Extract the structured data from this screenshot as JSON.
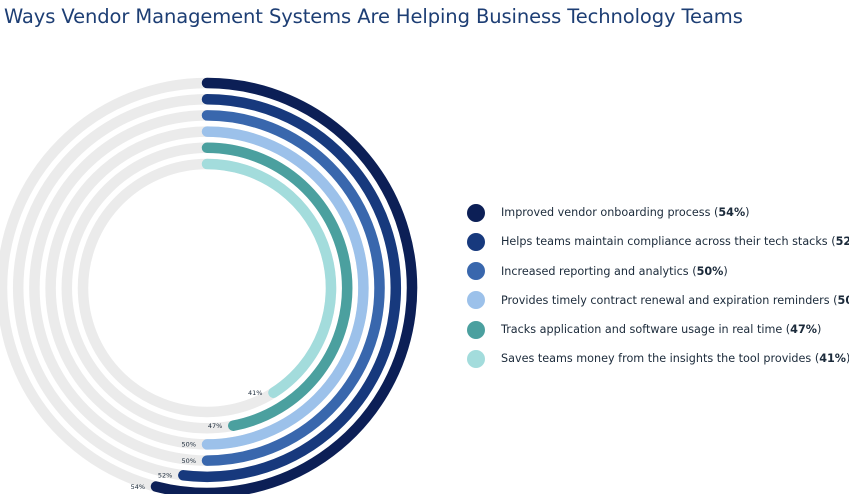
{
  "chart_data": {
    "type": "radial-bar",
    "title": "Ways Vendor Management Systems Are Helping Business Technology Teams",
    "max": 100,
    "track_color": "#ebebeb",
    "series": [
      {
        "name": "Improved vendor onboarding process",
        "value": 54,
        "value_label": "54%",
        "color": "#0c1f56"
      },
      {
        "name": "Helps teams maintain compliance across their tech stacks",
        "value": 52,
        "value_label": "52%",
        "color": "#17397d"
      },
      {
        "name": "Increased reporting and analytics",
        "value": 50,
        "value_label": "50%",
        "color": "#3967ad"
      },
      {
        "name": "Provides timely contract renewal and expiration reminders",
        "value": 50,
        "value_label": "50%",
        "color": "#9cc1ea"
      },
      {
        "name": "Tracks application and software usage in real time",
        "value": 47,
        "value_label": "47%",
        "color": "#4ba09f"
      },
      {
        "name": "Saves teams money from the insights the tool provides",
        "value": 41,
        "value_label": "41%",
        "color": "#a3dcdc"
      }
    ]
  }
}
